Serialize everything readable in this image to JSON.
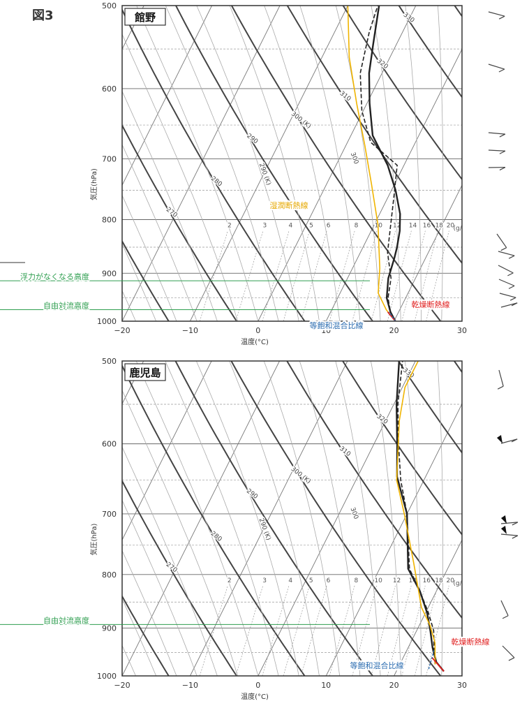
{
  "figure_label": "図3",
  "chart_data": [
    {
      "type": "line",
      "station": "館野",
      "xlabel": "温度(°C)",
      "ylabel": "気圧(hPa)",
      "xlim": [
        -20,
        30
      ],
      "ylim": [
        1000,
        500
      ],
      "y_scale": "log",
      "x_ticks": [
        "−20",
        "−10",
        "0",
        "10",
        "20",
        "30"
      ],
      "y_ticks": [
        "500",
        "600",
        "700",
        "800",
        "900",
        "1000"
      ],
      "theta_labels": [
        "270",
        "280",
        "290",
        "300 (K)",
        "310",
        "320",
        "330"
      ],
      "theta_e_labels": [
        "290 (K)",
        "300",
        "310"
      ],
      "mixing_ratio_labels": [
        "2",
        "3",
        "4",
        "5",
        "6",
        "8",
        "10",
        "12",
        "14",
        "16",
        "18",
        "20",
        "(g/kg)"
      ],
      "series": [
        {
          "style": "solid-black",
          "points": [
            [
              20.2,
              1000
            ],
            [
              18.8,
              980
            ],
            [
              17.2,
              950
            ],
            [
              16.0,
              910
            ],
            [
              15.4,
              870
            ],
            [
              15.0,
              850
            ],
            [
              14.2,
              820
            ],
            [
              13.0,
              790
            ],
            [
              10.6,
              750
            ],
            [
              7.6,
              710
            ],
            [
              3.2,
              665
            ],
            [
              0.4,
              620
            ],
            [
              -1.9,
              580
            ],
            [
              -3.4,
              545
            ],
            [
              -5.4,
              500
            ]
          ]
        },
        {
          "style": "dashed-black",
          "points": [
            [
              20.2,
              1000
            ],
            [
              18.8,
              980
            ],
            [
              17.4,
              950
            ],
            [
              16.4,
              910
            ],
            [
              14.0,
              860
            ],
            [
              10.8,
              760
            ],
            [
              9.0,
              710
            ],
            [
              3.4,
              675
            ],
            [
              -0.2,
              630
            ],
            [
              -3.2,
              580
            ],
            [
              -4.9,
              530
            ],
            [
              -5.6,
              500
            ]
          ]
        },
        {
          "style": "orange",
          "points": [
            [
              20.2,
              1000
            ],
            [
              18.0,
              975
            ],
            [
              15.6,
              940
            ],
            [
              14.0,
              890
            ],
            [
              10.6,
              810
            ],
            [
              6.6,
              740
            ],
            [
              2.8,
              680
            ],
            [
              -1.5,
              620
            ],
            [
              -6.0,
              560
            ],
            [
              -10.0,
              500
            ]
          ]
        },
        {
          "style": "red",
          "points": [
            [
              20.2,
              1000
            ],
            [
              18.4,
              980
            ]
          ]
        },
        {
          "style": "blue-dashed",
          "points": [
            [
              20.2,
              1000
            ],
            [
              18.6,
              980
            ]
          ]
        }
      ],
      "annotations": [
        {
          "text": "湿潤断熱線",
          "color": "#e6a800"
        },
        {
          "text": "乾燥断熱線",
          "color": "#e02020"
        },
        {
          "text": "等飽和混合比線",
          "color": "#2b6cb0"
        },
        {
          "text": "浮力がなくなる高度",
          "color": "#2e9e4f",
          "pressure": 915
        },
        {
          "text": "自由対流高度",
          "color": "#2e9e4f",
          "pressure": 975
        }
      ]
    },
    {
      "type": "line",
      "station": "鹿児島",
      "xlabel": "温度(°C)",
      "ylabel": "気圧(hPa)",
      "xlim": [
        -20,
        30
      ],
      "ylim": [
        1000,
        500
      ],
      "y_scale": "log",
      "x_ticks": [
        "−20",
        "−10",
        "0",
        "10",
        "20",
        "30"
      ],
      "y_ticks": [
        "500",
        "600",
        "700",
        "800",
        "900",
        "1000"
      ],
      "theta_labels": [
        "270",
        "280",
        "290",
        "300 (K)",
        "310",
        "320",
        "330"
      ],
      "theta_e_labels": [
        "290 (K)",
        "300",
        "310"
      ],
      "mixing_ratio_labels": [
        "2",
        "3",
        "4",
        "5",
        "6",
        "8",
        "10",
        "12",
        "14",
        "16",
        "18",
        "20",
        "(g/kg)"
      ],
      "series": [
        {
          "style": "solid-black",
          "points": [
            [
              27.0,
              990
            ],
            [
              25.2,
              970
            ],
            [
              23.6,
              940
            ],
            [
              22.0,
              905
            ],
            [
              20.2,
              870
            ],
            [
              17.6,
              830
            ],
            [
              14.2,
              790
            ],
            [
              10.0,
              700
            ],
            [
              5.8,
              645
            ],
            [
              3.4,
              600
            ],
            [
              0.4,
              550
            ],
            [
              -2.4,
              500
            ]
          ]
        },
        {
          "style": "dashed-black",
          "points": [
            [
              25.2,
              975
            ],
            [
              24.0,
              945
            ],
            [
              22.5,
              905
            ],
            [
              20.4,
              870
            ],
            [
              17.6,
              830
            ],
            [
              14.4,
              790
            ],
            [
              10.0,
              700
            ],
            [
              6.6,
              650
            ],
            [
              3.6,
              600
            ],
            [
              0.6,
              550
            ],
            [
              -1.9,
              500
            ]
          ]
        },
        {
          "style": "orange",
          "points": [
            [
              25.2,
              975
            ],
            [
              23.6,
              930
            ],
            [
              21.6,
              895
            ],
            [
              19.0,
              860
            ],
            [
              14.6,
              780
            ],
            [
              9.6,
              700
            ],
            [
              6.0,
              650
            ],
            [
              2.0,
              570
            ],
            [
              0.4,
              530
            ],
            [
              0.4,
              500
            ]
          ]
        },
        {
          "style": "red",
          "points": [
            [
              27.0,
              990
            ],
            [
              24.2,
              960
            ]
          ]
        },
        {
          "style": "blue-dashed",
          "points": [
            [
              24.6,
              985
            ],
            [
              24.0,
              945
            ]
          ]
        }
      ],
      "annotations": [
        {
          "text": "乾燥断熱線",
          "color": "#e02020"
        },
        {
          "text": "等飽和混合比線",
          "color": "#2b6cb0"
        },
        {
          "text": "自由対流高度",
          "color": "#2e9e4f",
          "pressure": 893
        }
      ]
    }
  ]
}
